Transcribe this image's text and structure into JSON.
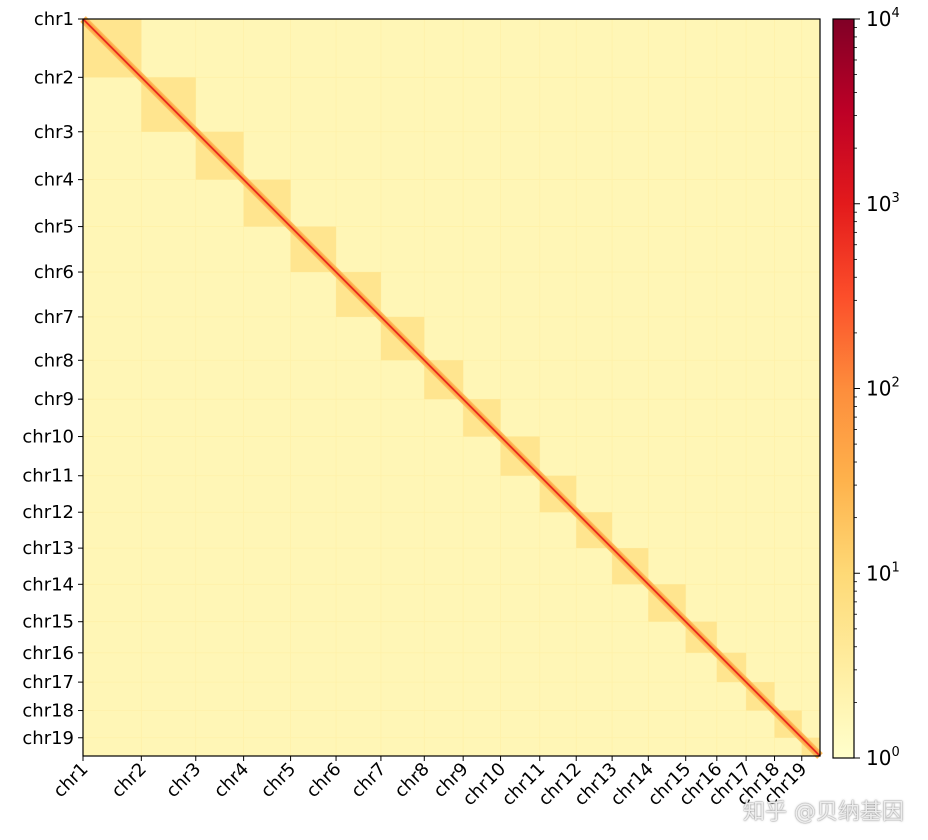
{
  "chart_data": {
    "type": "heatmap",
    "title": "",
    "subtitle": "",
    "xlabel": "",
    "ylabel": "",
    "chromosomes": [
      "chr1",
      "chr2",
      "chr3",
      "chr4",
      "chr5",
      "chr6",
      "chr7",
      "chr8",
      "chr9",
      "chr10",
      "chr11",
      "chr12",
      "chr13",
      "chr14",
      "chr15",
      "chr16",
      "chr17",
      "chr18",
      "chr19"
    ],
    "relative_lengths": [
      195,
      182,
      160,
      157,
      152,
      150,
      145,
      130,
      125,
      131,
      122,
      120,
      121,
      125,
      104,
      98,
      95,
      91,
      61
    ],
    "color_scale": {
      "type": "log",
      "min": 1,
      "max": 10000,
      "ticks": [
        {
          "value": 1,
          "label": "10",
          "exp": "0"
        },
        {
          "value": 10,
          "label": "10",
          "exp": "1"
        },
        {
          "value": 100,
          "label": "10",
          "exp": "2"
        },
        {
          "value": 1000,
          "label": "10",
          "exp": "3"
        },
        {
          "value": 10000,
          "label": "10",
          "exp": "4"
        }
      ],
      "colormap": "YlOrRd",
      "colors": [
        "#ffffcc",
        "#ffeda0",
        "#fed976",
        "#feb24c",
        "#fd8d3c",
        "#fc4e2a",
        "#e31a1c",
        "#bd0026",
        "#800026"
      ]
    },
    "approx_levels": {
      "background_trans": 1.8,
      "intra_block": 5,
      "near_diagonal": 60,
      "diagonal": 600
    },
    "legend": "colorbar-right",
    "grid": false
  },
  "watermark": "知乎 @贝纳基因"
}
